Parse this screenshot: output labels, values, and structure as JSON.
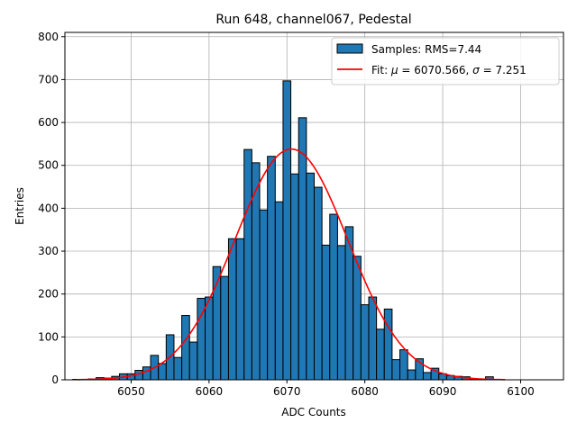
{
  "chart_data": {
    "type": "bar",
    "title": "Run 648, channel067, Pedestal",
    "xlabel": "ADC Counts",
    "ylabel": "Entries",
    "xlim": [
      6041.5,
      6105.5
    ],
    "ylim": [
      0,
      810
    ],
    "xticks": [
      6050,
      6060,
      6070,
      6080,
      6090,
      6100
    ],
    "yticks": [
      0,
      100,
      200,
      300,
      400,
      500,
      600,
      700,
      800
    ],
    "grid": true,
    "legend_position": "top-right",
    "series": [
      {
        "name": "Samples: RMS=7.44",
        "type": "histogram",
        "color": "#1f77b4",
        "bin_width": 1,
        "x": [
          6043,
          6044,
          6045,
          6046,
          6047,
          6048,
          6049,
          6050,
          6051,
          6052,
          6053,
          6054,
          6055,
          6056,
          6057,
          6058,
          6059,
          6060,
          6061,
          6062,
          6063,
          6064,
          6065,
          6066,
          6067,
          6068,
          6069,
          6070,
          6071,
          6072,
          6073,
          6074,
          6075,
          6076,
          6077,
          6078,
          6079,
          6080,
          6081,
          6082,
          6083,
          6084,
          6085,
          6086,
          6087,
          6088,
          6089,
          6090,
          6091,
          6092,
          6093,
          6094,
          6095,
          6096,
          6097,
          6098
        ],
        "values": [
          1,
          1,
          2,
          5,
          4,
          8,
          14,
          14,
          22,
          30,
          57,
          38,
          105,
          52,
          150,
          88,
          190,
          193,
          264,
          241,
          329,
          329,
          537,
          506,
          396,
          521,
          415,
          697,
          480,
          611,
          482,
          449,
          314,
          386,
          313,
          357,
          288,
          175,
          193,
          118,
          165,
          47,
          70,
          23,
          49,
          17,
          27,
          14,
          10,
          8,
          7,
          2,
          2,
          7,
          0,
          0
        ]
      },
      {
        "name": "Fit: μ = 6070.566, σ = 7.251",
        "type": "line",
        "color": "#ff0000",
        "mu": 6070.566,
        "sigma": 7.251,
        "amplitude": 538,
        "x_range": [
          6043,
          6098
        ]
      }
    ]
  },
  "legend": {
    "samples_label": "Samples: RMS=7.44",
    "fit_prefix": "Fit: ",
    "fit_mu_symbol": "μ",
    "fit_mu_value": " = 6070.566, ",
    "fit_sigma_symbol": "σ",
    "fit_sigma_value": " = 7.251"
  }
}
